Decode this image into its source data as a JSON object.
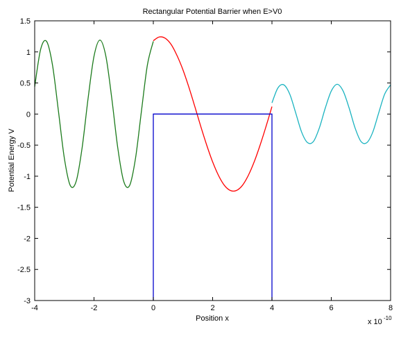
{
  "chart_data": {
    "type": "line",
    "title": "Rectangular Potential Barrier when E>V0",
    "xlabel": "Position  x",
    "ylabel": "Potential Energy V",
    "x_exponent_base": "x 10",
    "x_exponent": "-10",
    "xlim": [
      -4,
      8
    ],
    "xticks": [
      -4,
      -2,
      0,
      2,
      4,
      6,
      8
    ],
    "ylim": [
      -3,
      1.5
    ],
    "yticks": [
      -3,
      -2.5,
      -2,
      -1.5,
      -1,
      -0.5,
      0,
      0.5,
      1,
      1.5
    ],
    "grid": false,
    "series": [
      {
        "color": "#1a7a1a",
        "x": [
          -4,
          -3.8,
          -3.6,
          -3.4,
          -3.2,
          -3,
          -2.8,
          -2.6,
          -2.4,
          -2.2,
          -2,
          -1.8,
          -1.6,
          -1.4,
          -1.2,
          -1,
          -0.8,
          -0.6,
          -0.4,
          -0.2,
          0
        ],
        "values": [
          0.44,
          1.04,
          1.17,
          0.79,
          0.05,
          -0.71,
          -1.15,
          -1.08,
          -0.54,
          0.25,
          0.93,
          1.19,
          0.93,
          0.25,
          -0.54,
          -1.08,
          -1.15,
          -0.71,
          0.05,
          0.79,
          1.17
        ]
      },
      {
        "color": "#ff0000",
        "x": [
          0,
          0.2,
          0.4,
          0.6,
          0.8,
          1,
          1.2,
          1.4,
          1.6,
          1.8,
          2,
          2.2,
          2.4,
          2.6,
          2.8,
          3,
          3.2,
          3.4,
          3.6,
          3.8,
          4
        ],
        "values": [
          1.18,
          1.24,
          1.22,
          1.12,
          0.94,
          0.71,
          0.43,
          0.12,
          -0.2,
          -0.5,
          -0.77,
          -0.99,
          -1.15,
          -1.23,
          -1.23,
          -1.15,
          -0.99,
          -0.77,
          -0.5,
          -0.2,
          0.12
        ]
      },
      {
        "color": "#1ab3c0",
        "x": [
          4,
          4.2,
          4.4,
          4.6,
          4.8,
          5,
          5.2,
          5.4,
          5.6,
          5.8,
          6,
          6.2,
          6.4,
          6.6,
          6.8,
          7,
          7.2,
          7.4,
          7.6,
          7.8,
          8
        ],
        "values": [
          0.18,
          0.42,
          0.47,
          0.32,
          0.02,
          -0.29,
          -0.46,
          -0.44,
          -0.22,
          0.1,
          0.37,
          0.48,
          0.37,
          0.1,
          -0.22,
          -0.44,
          -0.46,
          -0.29,
          0.02,
          0.32,
          0.47
        ]
      },
      {
        "color": "#0000cc",
        "x": [
          0,
          0,
          4,
          4
        ],
        "values": [
          -3,
          0,
          0,
          -3
        ]
      }
    ]
  }
}
